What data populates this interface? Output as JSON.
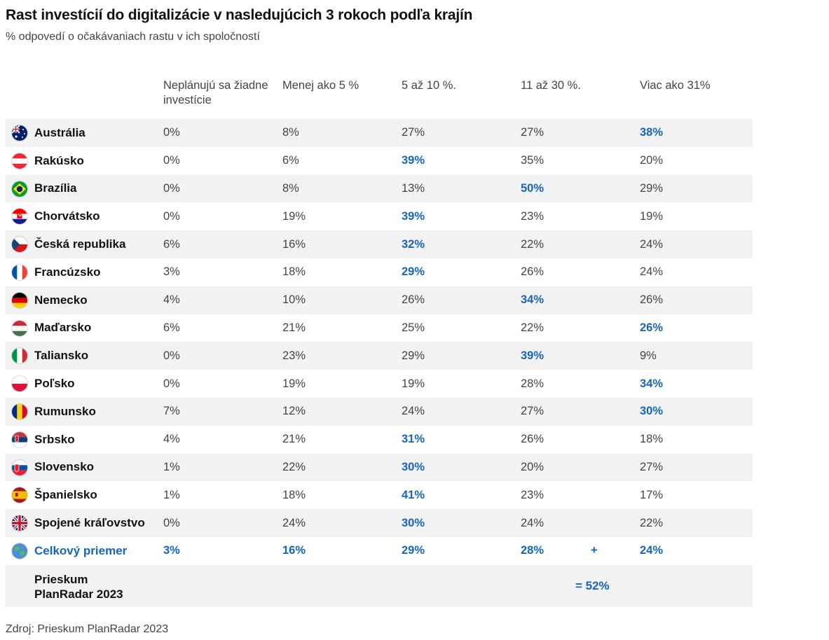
{
  "header": {
    "title": "Rast investícií do digitalizácie v nasledujúcich 3 rokoch podľa krajín",
    "subtitle": "% odpovedí o očakávaniach rastu v ich spoločností"
  },
  "chart_data": {
    "type": "table",
    "columns": [
      "Neplánujú sa žiadne investície",
      "Menej ako 5 %",
      "5 až 10 %.",
      "11 až 30 %.",
      "Viac ako 31%"
    ],
    "rows": [
      {
        "country": "Austrália",
        "flag": "australia-flag-icon",
        "values": [
          "0%",
          "8%",
          "27%",
          "27%",
          "38%"
        ],
        "highlight": 4
      },
      {
        "country": "Rakúsko",
        "flag": "austria-flag-icon",
        "values": [
          "0%",
          "6%",
          "39%",
          "35%",
          "20%"
        ],
        "highlight": 2
      },
      {
        "country": "Brazília",
        "flag": "brazil-flag-icon",
        "values": [
          "0%",
          "8%",
          "13%",
          "50%",
          "29%"
        ],
        "highlight": 3
      },
      {
        "country": "Chorvátsko",
        "flag": "croatia-flag-icon",
        "values": [
          "0%",
          "19%",
          "39%",
          "23%",
          "19%"
        ],
        "highlight": 2
      },
      {
        "country": "Česká republika",
        "flag": "czechia-flag-icon",
        "values": [
          "6%",
          "16%",
          "32%",
          "22%",
          "24%"
        ],
        "highlight": 2
      },
      {
        "country": "Francúzsko",
        "flag": "france-flag-icon",
        "values": [
          "3%",
          "18%",
          "29%",
          "26%",
          "24%"
        ],
        "highlight": 2
      },
      {
        "country": "Nemecko",
        "flag": "germany-flag-icon",
        "values": [
          "4%",
          "10%",
          "26%",
          "34%",
          "26%"
        ],
        "highlight": 3
      },
      {
        "country": "Maďarsko",
        "flag": "hungary-flag-icon",
        "values": [
          "6%",
          "21%",
          "25%",
          "22%",
          "26%"
        ],
        "highlight": 4
      },
      {
        "country": "Taliansko",
        "flag": "italy-flag-icon",
        "values": [
          "0%",
          "23%",
          "29%",
          "39%",
          "9%"
        ],
        "highlight": 3
      },
      {
        "country": "Poľsko",
        "flag": "poland-flag-icon",
        "values": [
          "0%",
          "19%",
          "19%",
          "28%",
          "34%"
        ],
        "highlight": 4
      },
      {
        "country": "Rumunsko",
        "flag": "romania-flag-icon",
        "values": [
          "7%",
          "12%",
          "24%",
          "27%",
          "30%"
        ],
        "highlight": 4
      },
      {
        "country": "Srbsko",
        "flag": "serbia-flag-icon",
        "values": [
          "4%",
          "21%",
          "31%",
          "26%",
          "18%"
        ],
        "highlight": 2
      },
      {
        "country": "Slovensko",
        "flag": "slovakia-flag-icon",
        "values": [
          "1%",
          "22%",
          "30%",
          "20%",
          "27%"
        ],
        "highlight": 2
      },
      {
        "country": "Španielsko",
        "flag": "spain-flag-icon",
        "values": [
          "1%",
          "18%",
          "41%",
          "23%",
          "17%"
        ],
        "highlight": 2
      },
      {
        "country": "Spojené kráľovstvo",
        "flag": "uk-flag-icon",
        "values": [
          "0%",
          "24%",
          "30%",
          "24%",
          "22%"
        ],
        "highlight": 2
      }
    ],
    "average": {
      "label": "Celkový priemer",
      "icon": "globe-icon",
      "values": [
        "3%",
        "16%",
        "29%",
        "28%",
        "24%"
      ],
      "plus": "+"
    },
    "summary": {
      "label": "Prieskum PlanRadar 2023",
      "value": "= 52%"
    }
  },
  "footer": {
    "source": "Zdroj: Prieskum PlanRadar 2023"
  },
  "colors": {
    "highlight": "#1565c0",
    "shade": "#f2f2f2"
  }
}
